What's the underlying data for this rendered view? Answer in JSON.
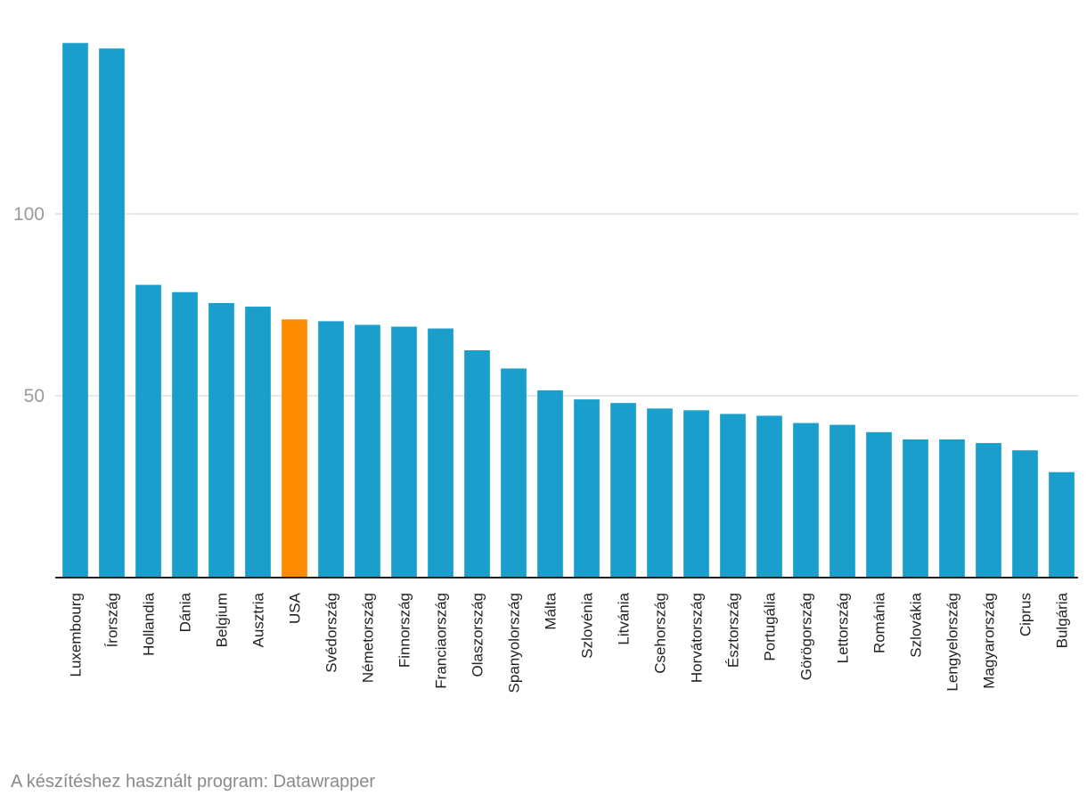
{
  "chart_data": {
    "type": "bar",
    "title": "",
    "xlabel": "",
    "ylabel": "",
    "ylim": [
      0,
      150
    ],
    "yticks": [
      50,
      100
    ],
    "grid": true,
    "categories": [
      "Luxembourg",
      "Írország",
      "Hollandia",
      "Dánia",
      "Belgium",
      "Ausztria",
      "USA",
      "Svédország",
      "Németország",
      "Finnország",
      "Franciaország",
      "Olaszország",
      "Spanyolország",
      "Málta",
      "Szlovénia",
      "Litvánia",
      "Csehország",
      "Horvátország",
      "Észtország",
      "Portugália",
      "Görögország",
      "Lettország",
      "Románia",
      "Szlovákia",
      "Lengyelország",
      "Magyarország",
      "Ciprus",
      "Bulgária"
    ],
    "values": [
      147,
      145.5,
      80.5,
      78.5,
      75.5,
      74.5,
      71,
      70.5,
      69.5,
      69,
      68.5,
      62.5,
      57.5,
      51.5,
      49,
      48,
      46.5,
      46,
      45,
      44.5,
      42.5,
      42,
      40,
      38,
      38,
      37,
      35,
      29
    ],
    "highlight": "USA",
    "colors": {
      "bar": "#1a9fcc",
      "highlight": "#ff8c00",
      "grid": "#e0e0e0",
      "axis": "#222222"
    }
  },
  "footer": {
    "credit": "A készítéshez használt program: Datawrapper"
  }
}
